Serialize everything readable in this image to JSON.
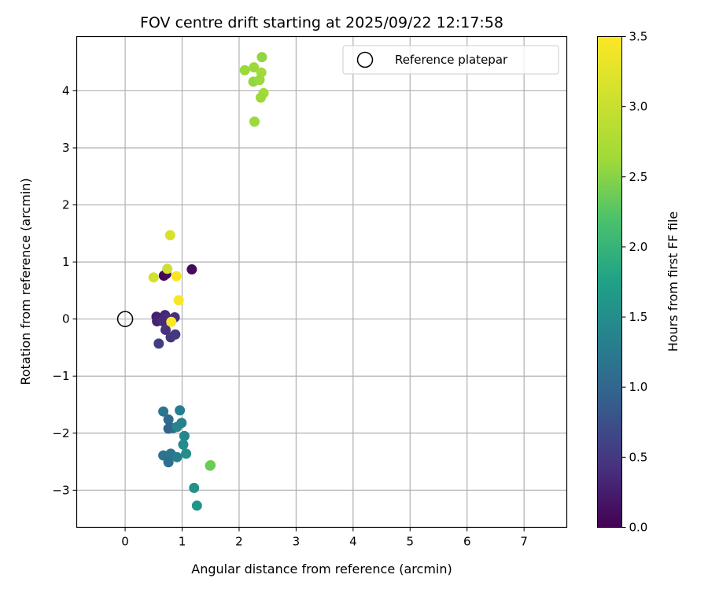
{
  "chart_data": {
    "type": "scatter",
    "title": "FOV centre drift starting at 2025/09/22 12:17:58",
    "xlabel": "Angular distance from reference (arcmin)",
    "ylabel": "Rotation from reference (arcmin)",
    "xlim": [
      -0.85,
      7.75
    ],
    "ylim": [
      -3.65,
      4.95
    ],
    "xticks": [
      0,
      1,
      2,
      3,
      4,
      5,
      6,
      7
    ],
    "yticks": [
      -3,
      -2,
      -1,
      0,
      1,
      2,
      3,
      4
    ],
    "xtick_labels": [
      "0",
      "1",
      "2",
      "3",
      "4",
      "5",
      "6",
      "7"
    ],
    "ytick_labels": [
      "−3",
      "−2",
      "−1",
      "0",
      "1",
      "2",
      "3",
      "4"
    ],
    "grid": true,
    "legend": {
      "label": "Reference platepar",
      "location": "top-right",
      "marker": "open-circle"
    },
    "reference_point": {
      "x": 0,
      "y": 0
    },
    "colorbar": {
      "label": "Hours from first FF file",
      "colormap": "viridis",
      "range": [
        0.0,
        3.5
      ],
      "ticks": [
        0.0,
        0.5,
        1.0,
        1.5,
        2.0,
        2.5,
        3.0,
        3.5
      ],
      "tick_labels": [
        "0.0",
        "0.5",
        "1.0",
        "1.5",
        "2.0",
        "2.5",
        "3.0",
        "3.5"
      ]
    },
    "points": [
      {
        "x": 0.68,
        "y": 0.76,
        "t": 0.02
      },
      {
        "x": 0.72,
        "y": 0.79,
        "t": 0.05
      },
      {
        "x": 1.17,
        "y": 0.87,
        "t": 0.08
      },
      {
        "x": 0.55,
        "y": 0.04,
        "t": 0.25
      },
      {
        "x": 0.56,
        "y": -0.04,
        "t": 0.3
      },
      {
        "x": 0.7,
        "y": 0.07,
        "t": 0.35
      },
      {
        "x": 0.74,
        "y": 0.01,
        "t": 0.4
      },
      {
        "x": 0.66,
        "y": -0.04,
        "t": 0.38
      },
      {
        "x": 0.87,
        "y": 0.03,
        "t": 0.42
      },
      {
        "x": 0.71,
        "y": -0.19,
        "t": 0.45
      },
      {
        "x": 0.8,
        "y": -0.32,
        "t": 0.48
      },
      {
        "x": 0.88,
        "y": -0.27,
        "t": 0.5
      },
      {
        "x": 0.59,
        "y": -0.43,
        "t": 0.55
      },
      {
        "x": 0.67,
        "y": -1.62,
        "t": 1.2
      },
      {
        "x": 0.96,
        "y": -1.6,
        "t": 1.3
      },
      {
        "x": 0.76,
        "y": -1.76,
        "t": 1.05
      },
      {
        "x": 0.76,
        "y": -1.92,
        "t": 0.95
      },
      {
        "x": 0.84,
        "y": -1.91,
        "t": 1.0
      },
      {
        "x": 0.91,
        "y": -1.89,
        "t": 1.4
      },
      {
        "x": 0.99,
        "y": -1.82,
        "t": 1.35
      },
      {
        "x": 1.04,
        "y": -2.05,
        "t": 1.4
      },
      {
        "x": 1.02,
        "y": -2.2,
        "t": 1.45
      },
      {
        "x": 1.07,
        "y": -2.36,
        "t": 1.5
      },
      {
        "x": 0.67,
        "y": -2.39,
        "t": 1.15
      },
      {
        "x": 0.8,
        "y": -2.36,
        "t": 1.2
      },
      {
        "x": 0.91,
        "y": -2.42,
        "t": 1.3
      },
      {
        "x": 0.76,
        "y": -2.51,
        "t": 1.1
      },
      {
        "x": 1.21,
        "y": -2.96,
        "t": 1.55
      },
      {
        "x": 1.26,
        "y": -3.27,
        "t": 1.6
      },
      {
        "x": 1.5,
        "y": -2.56,
        "t": 2.55
      },
      {
        "x": 1.49,
        "y": -2.57,
        "t": 2.35
      },
      {
        "x": 2.4,
        "y": 4.59,
        "t": 2.55
      },
      {
        "x": 2.1,
        "y": 4.36,
        "t": 2.6
      },
      {
        "x": 2.26,
        "y": 4.41,
        "t": 2.6
      },
      {
        "x": 2.39,
        "y": 4.32,
        "t": 2.65
      },
      {
        "x": 2.25,
        "y": 4.16,
        "t": 2.55
      },
      {
        "x": 2.36,
        "y": 4.19,
        "t": 2.6
      },
      {
        "x": 2.43,
        "y": 3.96,
        "t": 2.65
      },
      {
        "x": 2.38,
        "y": 3.88,
        "t": 2.6
      },
      {
        "x": 2.27,
        "y": 3.46,
        "t": 2.6
      },
      {
        "x": 0.79,
        "y": 1.47,
        "t": 3.15
      },
      {
        "x": 0.74,
        "y": 0.88,
        "t": 3.05
      },
      {
        "x": 0.5,
        "y": 0.73,
        "t": 3.1
      },
      {
        "x": 0.9,
        "y": 0.75,
        "t": 3.45
      },
      {
        "x": 0.94,
        "y": 0.33,
        "t": 3.45
      },
      {
        "x": 0.81,
        "y": -0.05,
        "t": 3.5
      }
    ]
  }
}
